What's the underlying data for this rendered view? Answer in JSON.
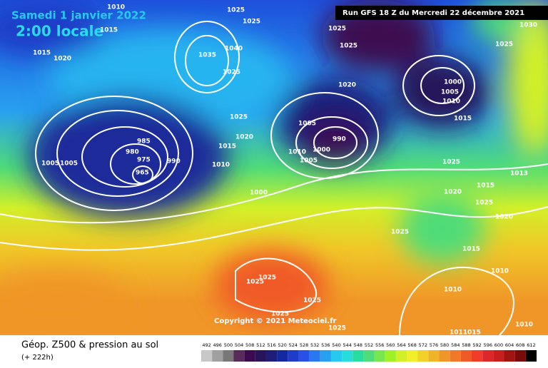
{
  "header": {
    "date": "Samedi 1 janvier 2022",
    "time": "2:00 locale",
    "run": "Run GFS 18 Z du Mercredi 22 décembre 2021"
  },
  "copyright": "Copyright © 2021 Meteociel.fr",
  "footer": {
    "title": "Géop. Z500 & pression au sol",
    "lead": "(+ 222h)"
  },
  "isobar_labels": [
    "1010",
    "1015",
    "1025",
    "1025",
    "1015",
    "1020",
    "1040",
    "1035",
    "1025",
    "1025",
    "1025",
    "1030",
    "1025",
    "1020",
    "1000",
    "1005",
    "1010",
    "1015",
    "1025",
    "1020",
    "1015",
    "1005",
    "990",
    "985",
    "980",
    "975",
    "965",
    "990",
    "1005",
    "1005",
    "1010",
    "1010",
    "1000",
    "1005",
    "1025",
    "1013",
    "1015",
    "1020",
    "1025",
    "1020",
    "1000",
    "1025",
    "1015",
    "1010",
    "1010",
    "1025",
    "1025",
    "1025",
    "1025",
    "1025",
    "1011015",
    "1010"
  ],
  "colorbar": {
    "values": [
      492,
      496,
      500,
      504,
      508,
      512,
      516,
      520,
      524,
      528,
      532,
      536,
      540,
      544,
      548,
      552,
      556,
      560,
      564,
      568,
      572,
      576,
      580,
      584,
      588,
      592,
      596,
      600,
      604,
      608,
      612
    ],
    "colors": [
      "#c8c8c8",
      "#a0a0a0",
      "#787878",
      "#5a2a5a",
      "#3c0a50",
      "#28145a",
      "#1e1e78",
      "#1428a0",
      "#1e3cc8",
      "#2850e6",
      "#2878f0",
      "#28a0f0",
      "#28c8f0",
      "#28dcdc",
      "#28dca0",
      "#50dc78",
      "#78e650",
      "#a0f028",
      "#d2f028",
      "#f0f028",
      "#f0d228",
      "#f0b428",
      "#f09628",
      "#f07828",
      "#f05a28",
      "#f03c28",
      "#dc2828",
      "#c81e1e",
      "#a01414",
      "#780a0a",
      "#000000"
    ]
  }
}
